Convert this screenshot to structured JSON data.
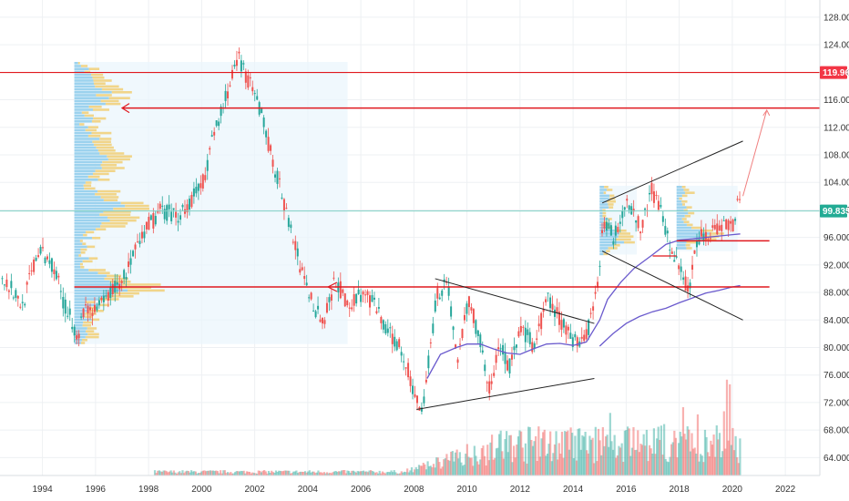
{
  "chart_data": {
    "type": "line",
    "title": "",
    "xlabel": "",
    "ylabel": "",
    "x_range": [
      1992.4,
      2023.3
    ],
    "y_range": [
      61.4,
      130.5
    ],
    "x_ticks": [
      "1994",
      "1996",
      "1998",
      "2000",
      "2002",
      "2004",
      "2006",
      "2008",
      "2010",
      "2012",
      "2014",
      "2016",
      "2018",
      "2020",
      "2022"
    ],
    "y_ticks": [
      "64.000",
      "68.000",
      "72.000",
      "76.000",
      "80.000",
      "84.000",
      "88.000",
      "92.000",
      "96.000",
      "100.000",
      "104.000",
      "108.000",
      "112.000",
      "116.000",
      "120.000",
      "124.000",
      "128.000"
    ],
    "grid": true,
    "series": [
      {
        "x": [
          1992.4,
          1993.2,
          1993.8,
          1994.4,
          1994.8,
          1995.3,
          1995.6,
          1996.0,
          1996.5,
          1997.0,
          1997.5,
          1998.0,
          1998.5,
          1999.0,
          1999.5,
          2000.0,
          2000.5,
          2001.0,
          2001.4,
          2001.8,
          2002.2,
          2002.6,
          2003.0,
          2003.4,
          2003.8,
          2004.2,
          2004.6,
          2005.0,
          2005.5,
          2006.0,
          2006.5,
          2007.0,
          2007.5,
          2008.0,
          2008.3,
          2008.8,
          2009.2,
          2009.6,
          2010.0,
          2010.4,
          2010.8,
          2011.2,
          2011.6,
          2012.0,
          2012.5,
          2013.0,
          2013.5,
          2014.0,
          2014.5,
          2014.9,
          2015.1,
          2015.5,
          2016.0,
          2016.5,
          2016.9,
          2017.3,
          2017.7,
          2018.0,
          2018.3,
          2018.7,
          2019.0,
          2019.5,
          2020.0,
          2020.25
        ],
        "y": [
          91,
          86,
          94,
          92,
          86,
          82,
          86,
          85,
          88,
          90,
          94,
          98,
          100,
          99,
          101,
          104,
          112,
          118,
          122,
          118,
          114,
          108,
          102,
          96,
          90,
          86,
          84,
          90,
          86,
          88,
          86,
          82,
          80,
          73,
          71,
          87,
          90,
          78,
          87,
          82,
          74,
          80,
          77,
          83,
          80,
          87,
          84,
          81,
          82,
          90,
          98,
          96,
          102,
          97,
          103,
          100,
          93,
          92,
          88,
          96,
          97,
          97,
          98,
          102
        ]
      },
      {
        "x": [
          2008.5,
          2009.0,
          2009.6,
          2010.0,
          2010.5,
          2011.0,
          2011.5,
          2012.0,
          2012.5,
          2013.0,
          2013.5,
          2014.0,
          2014.5,
          2015.0,
          2015.3,
          2015.8,
          2016.3,
          2017.0,
          2017.5,
          2018.0,
          2018.5,
          2019.0,
          2019.5,
          2020.0,
          2020.3
        ],
        "y": [
          75.5,
          79,
          80,
          80.5,
          80.5,
          79.8,
          79.2,
          79,
          79.8,
          80.5,
          80.6,
          80.3,
          80.8,
          84,
          87,
          89.5,
          91.5,
          93.5,
          95,
          95.6,
          95.8,
          96,
          96.2,
          96.4,
          96.5
        ]
      },
      {
        "x": [
          2015.0,
          2015.5,
          2016.0,
          2016.5,
          2017.0,
          2017.5,
          2018.0,
          2018.5,
          2019.0,
          2019.5,
          2020.0,
          2020.3
        ],
        "y": [
          80.2,
          82,
          83.5,
          84.5,
          85.2,
          85.7,
          86.5,
          87.2,
          87.9,
          88.3,
          88.8,
          89.0
        ]
      }
    ],
    "horizontal_levels": [
      119.965,
      114.8,
      88.8,
      95.5,
      99.835
    ],
    "price_labels": [
      {
        "value": "119.965",
        "color": "#f23645"
      },
      {
        "value": "99.835",
        "color": "#22ab94"
      }
    ],
    "trendlines": [
      {
        "x": [
          2008.8,
          2014.8
        ],
        "y": [
          90,
          83.5
        ]
      },
      {
        "x": [
          2008.1,
          2014.8
        ],
        "y": [
          71,
          75.5
        ]
      },
      {
        "x": [
          2015.1,
          2020.4
        ],
        "y": [
          101,
          110
        ]
      },
      {
        "x": [
          2015.1,
          2020.4
        ],
        "y": [
          94,
          84
        ]
      }
    ],
    "volume_bars": {
      "x_range": [
        1998.2,
        2020.3
      ],
      "max_y": 76
    }
  },
  "colors": {
    "up": "#26a69a",
    "down": "#ef5350",
    "level_line": "#e0191f",
    "trendline": "#222222",
    "ma_line": "#6a5acd",
    "profile_blue": "#9cd2ee",
    "profile_yellow": "#f1d58a",
    "badge_red": "#f23645",
    "badge_teal": "#22ab94"
  }
}
